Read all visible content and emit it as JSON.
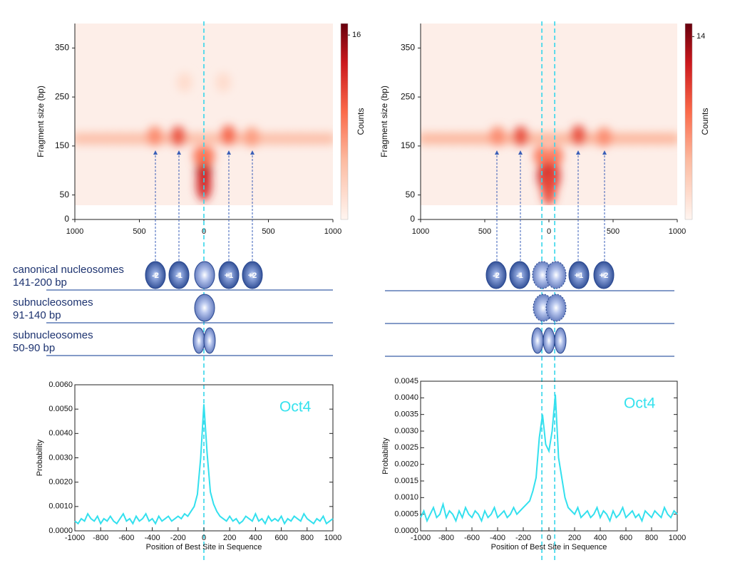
{
  "chart_data": [
    {
      "type": "heatmap",
      "ylabel": "Fragment size (bp)",
      "x": [
        -950,
        -850,
        -750,
        -650,
        -550,
        -450,
        -350,
        -250,
        -150,
        -50,
        50,
        150,
        250,
        350,
        450,
        550,
        650,
        750,
        850,
        950,
        -380,
        -200,
        190,
        370,
        0,
        0,
        -25,
        25,
        -150,
        150
      ],
      "y": [
        165,
        165,
        165,
        165,
        165,
        165,
        165,
        165,
        165,
        165,
        165,
        165,
        165,
        165,
        165,
        165,
        165,
        165,
        165,
        165,
        170,
        170,
        172,
        168,
        100,
        70,
        130,
        130,
        280,
        280
      ],
      "values": [
        4,
        4,
        4,
        4,
        4,
        4,
        4,
        4,
        4,
        4,
        4,
        4,
        4,
        4,
        4,
        4,
        4,
        4,
        4,
        4,
        7,
        10,
        9,
        6,
        14,
        12,
        8,
        8,
        2,
        2
      ],
      "xlim": [
        -1000,
        1000
      ],
      "ylim": [
        0,
        400
      ],
      "xticks": [
        {
          "value": -1000,
          "label": "1000"
        },
        {
          "value": -500,
          "label": "500"
        },
        0,
        500,
        1000
      ],
      "yticks": [
        0,
        50,
        150,
        250,
        350
      ],
      "colorbar": {
        "label": "Counts",
        "lim": [
          0,
          17
        ],
        "ticks": [
          16
        ]
      },
      "vlines": [
        0
      ]
    },
    {
      "type": "heatmap",
      "ylabel": "Fragment size (bp)",
      "x": [
        -950,
        -850,
        -750,
        -650,
        -550,
        -450,
        -350,
        -250,
        -150,
        -50,
        50,
        150,
        250,
        350,
        450,
        550,
        650,
        750,
        850,
        950,
        -400,
        -220,
        230,
        430,
        -30,
        30,
        -60,
        50,
        0
      ],
      "y": [
        165,
        165,
        165,
        165,
        165,
        165,
        165,
        165,
        165,
        165,
        165,
        165,
        165,
        165,
        165,
        165,
        165,
        165,
        165,
        165,
        170,
        170,
        172,
        168,
        90,
        90,
        130,
        130,
        60
      ],
      "values": [
        4,
        4,
        4,
        4,
        4,
        4,
        4,
        4,
        4,
        4,
        4,
        4,
        4,
        4,
        4,
        4,
        4,
        4,
        4,
        4,
        6,
        9,
        9,
        6,
        11,
        10,
        7,
        7,
        9
      ],
      "xlim": [
        -1000,
        1000
      ],
      "ylim": [
        0,
        400
      ],
      "xticks": [
        {
          "value": -1000,
          "label": "1000"
        },
        {
          "value": -500,
          "label": "500"
        },
        0,
        500,
        1000
      ],
      "yticks": [
        0,
        50,
        150,
        250,
        350
      ],
      "colorbar": {
        "label": "Counts",
        "lim": [
          0,
          15
        ],
        "ticks": [
          14
        ]
      },
      "vlines": [
        -55,
        45
      ]
    },
    {
      "type": "line",
      "xlabel": "Position of Best Site in Sequence",
      "ylabel": "Probability",
      "annotation": "Oct4",
      "color": "#33e0ee",
      "x": [
        -1000,
        -975,
        -950,
        -925,
        -900,
        -875,
        -850,
        -825,
        -800,
        -775,
        -750,
        -725,
        -700,
        -675,
        -650,
        -625,
        -600,
        -575,
        -550,
        -525,
        -500,
        -475,
        -450,
        -425,
        -400,
        -375,
        -350,
        -325,
        -300,
        -275,
        -250,
        -225,
        -200,
        -175,
        -150,
        -125,
        -100,
        -75,
        -50,
        -25,
        0,
        25,
        50,
        75,
        100,
        125,
        150,
        175,
        200,
        225,
        250,
        275,
        300,
        325,
        350,
        375,
        400,
        425,
        450,
        475,
        500,
        525,
        550,
        575,
        600,
        625,
        650,
        675,
        700,
        725,
        750,
        775,
        800,
        825,
        850,
        875,
        900,
        925,
        950,
        975,
        1000
      ],
      "values": [
        0.0004,
        0.0003,
        0.0005,
        0.0004,
        0.0007,
        0.0005,
        0.0004,
        0.0006,
        0.0003,
        0.0005,
        0.0004,
        0.0006,
        0.0004,
        0.0003,
        0.0005,
        0.0007,
        0.0004,
        0.0005,
        0.0003,
        0.0006,
        0.0004,
        0.0005,
        0.0007,
        0.0004,
        0.0005,
        0.0003,
        0.0006,
        0.0004,
        0.0005,
        0.0006,
        0.0004,
        0.0005,
        0.0006,
        0.0005,
        0.0007,
        0.0006,
        0.0008,
        0.001,
        0.0015,
        0.003,
        0.0052,
        0.0032,
        0.0016,
        0.0011,
        0.0008,
        0.0006,
        0.0005,
        0.0004,
        0.0006,
        0.0004,
        0.0005,
        0.0003,
        0.0004,
        0.0006,
        0.0005,
        0.0004,
        0.0007,
        0.0004,
        0.0005,
        0.0003,
        0.0006,
        0.0004,
        0.0005,
        0.0004,
        0.0006,
        0.0003,
        0.0005,
        0.0004,
        0.0006,
        0.0005,
        0.0004,
        0.0007,
        0.0005,
        0.0004,
        0.0003,
        0.0005,
        0.0004,
        0.0006,
        0.0003,
        0.0004,
        0.0005
      ],
      "xlim": [
        -1000,
        1000
      ],
      "ylim": [
        0,
        0.006
      ],
      "xticks": [
        -1000,
        -800,
        -600,
        -400,
        -200,
        0,
        200,
        400,
        600,
        800,
        1000
      ],
      "yticks": [
        {
          "value": 0,
          "label": "0.0000"
        },
        {
          "value": 0.001,
          "label": "0.0010"
        },
        {
          "value": 0.002,
          "label": "0.0020"
        },
        {
          "value": 0.003,
          "label": "0.0030"
        },
        {
          "value": 0.004,
          "label": "0.0040"
        },
        {
          "value": 0.005,
          "label": "0.0050"
        },
        {
          "value": 0.006,
          "label": "0.0060"
        }
      ]
    },
    {
      "type": "line",
      "xlabel": "Position of Best Site in Sequence",
      "ylabel": "Probability",
      "annotation": "Oct4",
      "color": "#33e0ee",
      "x": [
        -1000,
        -975,
        -950,
        -925,
        -900,
        -875,
        -850,
        -825,
        -800,
        -775,
        -750,
        -725,
        -700,
        -675,
        -650,
        -625,
        -600,
        -575,
        -550,
        -525,
        -500,
        -475,
        -450,
        -425,
        -400,
        -375,
        -350,
        -325,
        -300,
        -275,
        -250,
        -225,
        -200,
        -175,
        -150,
        -125,
        -100,
        -75,
        -50,
        -25,
        0,
        25,
        50,
        75,
        100,
        125,
        150,
        175,
        200,
        225,
        250,
        275,
        300,
        325,
        350,
        375,
        400,
        425,
        450,
        475,
        500,
        525,
        550,
        575,
        600,
        625,
        650,
        675,
        700,
        725,
        750,
        775,
        800,
        825,
        850,
        875,
        900,
        925,
        950,
        975,
        1000
      ],
      "values": [
        0.0004,
        0.0006,
        0.0003,
        0.0005,
        0.0007,
        0.0004,
        0.0005,
        0.0008,
        0.0004,
        0.0006,
        0.0005,
        0.0003,
        0.0006,
        0.0004,
        0.0007,
        0.0005,
        0.0004,
        0.0006,
        0.0005,
        0.0003,
        0.0006,
        0.0004,
        0.0005,
        0.0007,
        0.0004,
        0.0005,
        0.0006,
        0.0004,
        0.0005,
        0.0007,
        0.0005,
        0.0006,
        0.0007,
        0.0008,
        0.0009,
        0.0012,
        0.0016,
        0.0028,
        0.0035,
        0.0026,
        0.0024,
        0.003,
        0.0041,
        0.0022,
        0.0016,
        0.001,
        0.0007,
        0.0006,
        0.0005,
        0.0007,
        0.0004,
        0.0005,
        0.0006,
        0.0004,
        0.0005,
        0.0007,
        0.0004,
        0.0006,
        0.0005,
        0.0003,
        0.0006,
        0.0004,
        0.0005,
        0.0007,
        0.0004,
        0.0005,
        0.0006,
        0.0004,
        0.0005,
        0.0003,
        0.0006,
        0.0005,
        0.0004,
        0.0006,
        0.0005,
        0.0004,
        0.0007,
        0.0005,
        0.0004,
        0.0006,
        0.0005
      ],
      "xlim": [
        -1000,
        1000
      ],
      "ylim": [
        0,
        0.0045
      ],
      "xticks": [
        -1000,
        -800,
        -600,
        -400,
        -200,
        0,
        200,
        400,
        600,
        800,
        1000
      ],
      "yticks": [
        {
          "value": 0,
          "label": "0.0000"
        },
        {
          "value": 0.0005,
          "label": "0.0005"
        },
        {
          "value": 0.001,
          "label": "0.0010"
        },
        {
          "value": 0.0015,
          "label": "0.0015"
        },
        {
          "value": 0.002,
          "label": "0.0020"
        },
        {
          "value": 0.0025,
          "label": "0.0025"
        },
        {
          "value": 0.003,
          "label": "0.0030"
        },
        {
          "value": 0.0035,
          "label": "0.0035"
        },
        {
          "value": 0.004,
          "label": "0.0040"
        },
        {
          "value": 0.0045,
          "label": "0.0045"
        }
      ]
    }
  ],
  "diagram": {
    "rows": [
      [
        "canonical nucleosomes",
        " 141-200 bp"
      ],
      [
        "subnucleosomes",
        "91-140 bp"
      ],
      [
        "subnucleosomes",
        "50-90 bp"
      ]
    ],
    "nucleosomes": [
      "-2",
      "-1",
      "+1",
      "+2"
    ]
  }
}
